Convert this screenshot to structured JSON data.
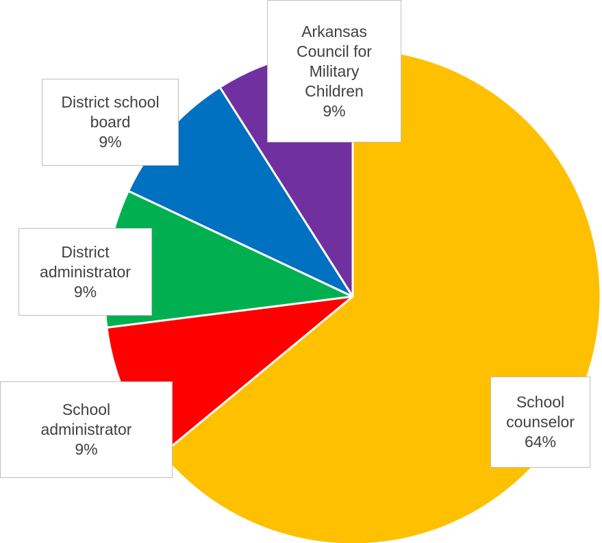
{
  "chart_data": {
    "type": "pie",
    "title": "",
    "legend": "none",
    "slices": [
      {
        "label": "School counselor",
        "value": 64,
        "percent_label": "64%",
        "color": "#ffc000"
      },
      {
        "label": "School administrator",
        "value": 9,
        "percent_label": "9%",
        "color": "#ff0000"
      },
      {
        "label": "District administrator",
        "value": 9,
        "percent_label": "9%",
        "color": "#00b050"
      },
      {
        "label": "District school board",
        "value": 9,
        "percent_label": "9%",
        "color": "#0070c0"
      },
      {
        "label": "Arkansas Council for Military Children",
        "value": 9,
        "percent_label": "9%",
        "color": "#7030a0"
      }
    ],
    "label_lines": [
      [
        "School",
        "counselor"
      ],
      [
        "School",
        "administrator"
      ],
      [
        "District",
        "administrator"
      ],
      [
        "District school",
        "board"
      ],
      [
        "Arkansas",
        "Council for",
        "Military",
        "Children"
      ]
    ]
  }
}
